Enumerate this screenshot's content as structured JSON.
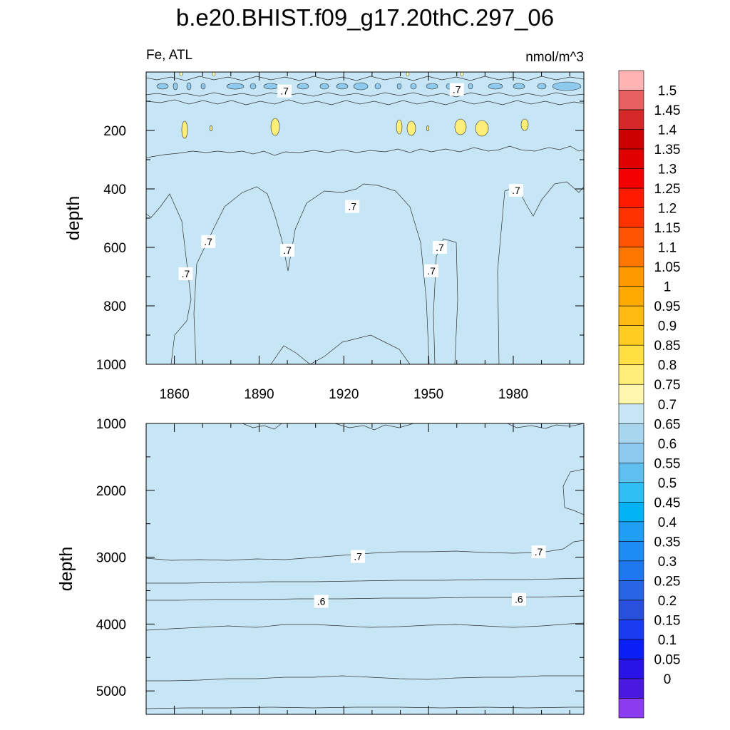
{
  "title": "b.e20.BHIST.f09_g17.20thC.297_06",
  "chart_data": [
    {
      "type": "heatmap",
      "panel": "upper",
      "left_label": "Fe, ATL",
      "right_label": "nmol/m^3",
      "ylabel": "depth",
      "xlim": [
        1850,
        2005
      ],
      "ylim": [
        1000,
        0
      ],
      "x_ticks": [
        1860,
        1890,
        1920,
        1950,
        1980
      ],
      "x_tick_labels": [
        "1860",
        "1890",
        "1920",
        "1950",
        "1980"
      ],
      "y_ticks": [
        200,
        400,
        600,
        800,
        1000
      ],
      "y_tick_labels": [
        "200",
        "400",
        "600",
        "800",
        "1000"
      ],
      "contour_labels": [
        {
          "text": ".7",
          "x": 1899,
          "y": 65
        },
        {
          "text": ".7",
          "x": 1960,
          "y": 60
        },
        {
          "text": ".7",
          "x": 1981,
          "y": 405
        },
        {
          "text": ".7",
          "x": 1923,
          "y": 460
        },
        {
          "text": ".7",
          "x": 1872,
          "y": 580
        },
        {
          "text": ".7",
          "x": 1900,
          "y": 610
        },
        {
          "text": ".7",
          "x": 1954,
          "y": 600
        },
        {
          "text": ".7",
          "x": 1864,
          "y": 690
        },
        {
          "text": ".7",
          "x": 1951,
          "y": 680
        }
      ]
    },
    {
      "type": "heatmap",
      "panel": "lower",
      "ylabel": "depth",
      "xlim": [
        1850,
        2005
      ],
      "ylim": [
        5350,
        1000
      ],
      "x_ticks": [
        1860,
        1890,
        1920,
        1950,
        1980
      ],
      "y_ticks": [
        1000,
        2000,
        3000,
        4000,
        5000
      ],
      "y_tick_labels": [
        "1000",
        "2000",
        "3000",
        "4000",
        "5000"
      ],
      "contour_labels": [
        {
          "text": ".7",
          "x": 1925,
          "y": 2990
        },
        {
          "text": ".7",
          "x": 1989,
          "y": 2920
        },
        {
          "text": ".6",
          "x": 1912,
          "y": 3660
        },
        {
          "text": ".6",
          "x": 1982,
          "y": 3630
        }
      ]
    }
  ],
  "colorbar": {
    "labels": [
      "1.5",
      "1.45",
      "1.4",
      "1.35",
      "1.3",
      "1.25",
      "1.2",
      "1.15",
      "1.1",
      "1.05",
      "1",
      "0.95",
      "0.9",
      "0.85",
      "0.8",
      "0.75",
      "0.7",
      "0.65",
      "0.6",
      "0.55",
      "0.5",
      "0.45",
      "0.4",
      "0.35",
      "0.3",
      "0.25",
      "0.2",
      "0.15",
      "0.1",
      "0.05",
      "0"
    ],
    "colors": [
      "#ffb3b3",
      "#e86060",
      "#d62828",
      "#cc0000",
      "#e00000",
      "#f20000",
      "#ff1a00",
      "#ff3300",
      "#ff5500",
      "#ff7700",
      "#ff9900",
      "#ffaa00",
      "#ffbb11",
      "#ffcc22",
      "#ffe040",
      "#ffee77",
      "#fff7b0",
      "#c6e6f5",
      "#a8d6ef",
      "#8ec9ee",
      "#5fc0f0",
      "#2ec0f5",
      "#00b4f5",
      "#1e9ef5",
      "#1e8cf5",
      "#1e78f0",
      "#2864e6",
      "#2850dc",
      "#1a3cf0",
      "#0a1ef5",
      "#2814e6",
      "#4b18e0",
      "#8c3cf0"
    ]
  }
}
